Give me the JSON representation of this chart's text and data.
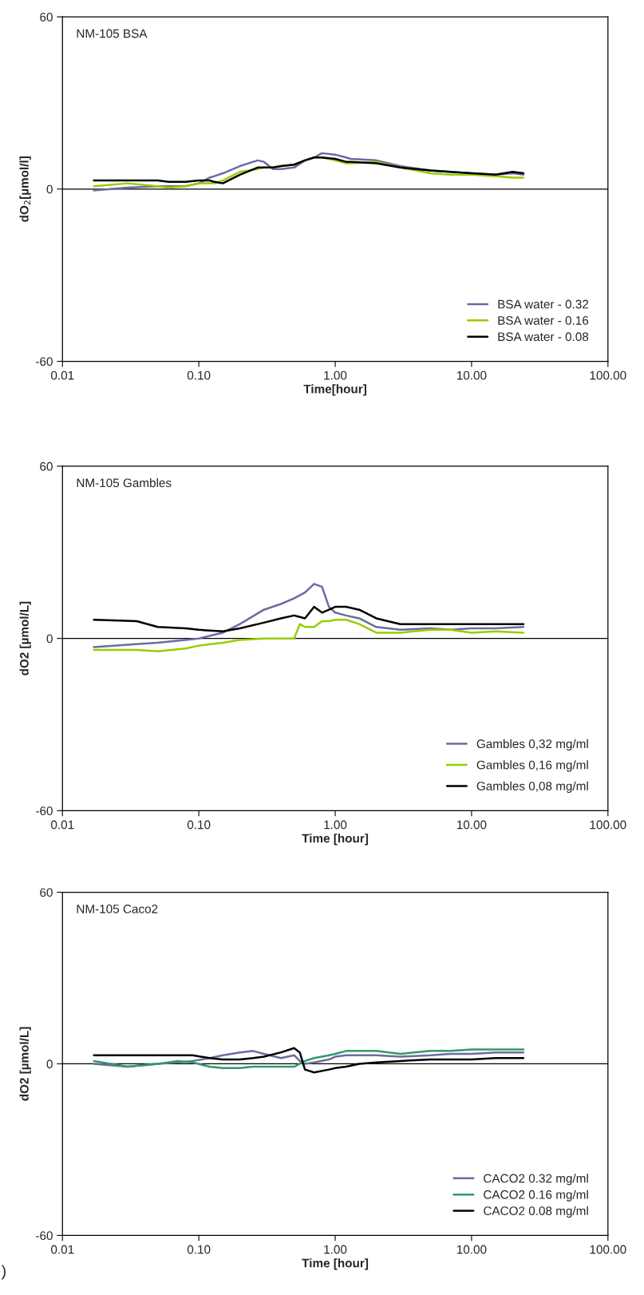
{
  "chart_data": [
    {
      "type": "line",
      "title": "NM-105 BSA",
      "xlabel": "Time[hour]",
      "ylabel": "dO$_{2}$[µmol/l]",
      "log": "x",
      "xlim": [
        0.01,
        100
      ],
      "xticks": [
        {
          "value": 0.01,
          "label": "0.01"
        },
        {
          "value": 0.1,
          "label": "0.10"
        },
        {
          "value": 1,
          "label": "1.00"
        },
        {
          "value": 10,
          "label": "10.00"
        },
        {
          "value": 100,
          "label": "100.00"
        }
      ],
      "ylim": [
        -60,
        60
      ],
      "yticks": [
        -60,
        0,
        60
      ],
      "grid": false,
      "legend": "bottom right",
      "ref_lines": [
        {
          "axis": "y",
          "value": 0
        }
      ],
      "x": [
        0.017,
        0.03,
        0.05,
        0.06,
        0.08,
        0.1,
        0.12,
        0.13,
        0.15,
        0.2,
        0.27,
        0.3,
        0.35,
        0.4,
        0.5,
        0.6,
        0.7,
        0.8,
        1.0,
        1.2,
        1.3,
        2,
        3,
        5,
        7,
        10,
        15,
        20,
        24
      ],
      "series": [
        {
          "name": "BSA water - 0.32",
          "color": "#6b6ba3",
          "values": [
            -0.5,
            0.5,
            1,
            1,
            1,
            2,
            4,
            4.5,
            5.5,
            8,
            10,
            9.5,
            7,
            7,
            7.5,
            10,
            11,
            12.5,
            12,
            11,
            10.5,
            10,
            8,
            6.5,
            6,
            5.5,
            5,
            5.5,
            5
          ]
        },
        {
          "name": "BSA water - 0.16",
          "color": "#99cc00",
          "values": [
            1,
            2,
            1,
            0.5,
            1,
            2,
            2,
            2,
            3,
            6,
            7,
            7.5,
            7.5,
            8,
            8.5,
            10,
            11,
            11,
            10,
            9,
            9,
            9.5,
            7.5,
            5.5,
            5,
            5,
            4.5,
            4,
            4
          ]
        },
        {
          "name": "BSA water - 0.08",
          "color": "#000000",
          "values": [
            3,
            3,
            3,
            2.5,
            2.5,
            3,
            3,
            2.5,
            2,
            5,
            7.5,
            7.5,
            7.5,
            8,
            8.5,
            10,
            11,
            11,
            10.5,
            9.5,
            9.5,
            9,
            7.5,
            6.5,
            6,
            5.5,
            5,
            6,
            5.5
          ]
        }
      ]
    },
    {
      "type": "line",
      "title": "NM-105 Gambles",
      "xlabel": "Time [hour]",
      "ylabel": "dO2 [µmol/L]",
      "log": "x",
      "xlim": [
        0.01,
        100
      ],
      "xticks": [
        {
          "value": 0.01,
          "label": "0.01"
        },
        {
          "value": 0.1,
          "label": "0.10"
        },
        {
          "value": 1,
          "label": "1.00"
        },
        {
          "value": 10,
          "label": "10.00"
        },
        {
          "value": 100,
          "label": "100.00"
        }
      ],
      "ylim": [
        -60,
        60
      ],
      "yticks": [
        -60,
        0,
        60
      ],
      "grid": false,
      "legend": "bottom right",
      "ref_lines": [
        {
          "axis": "y",
          "value": 0
        }
      ],
      "x": [
        0.017,
        0.035,
        0.05,
        0.08,
        0.1,
        0.15,
        0.2,
        0.3,
        0.4,
        0.5,
        0.55,
        0.6,
        0.7,
        0.8,
        0.9,
        1.0,
        1.2,
        1.5,
        2,
        3,
        5,
        7,
        10,
        15,
        24
      ],
      "series": [
        {
          "name": "Gambles 0,32 mg/ml",
          "color": "#6b6ba3",
          "values": [
            -3,
            -2,
            -1.5,
            -0.5,
            0,
            2,
            5,
            10,
            12,
            14,
            15,
            16,
            19,
            18,
            11,
            9,
            8,
            7,
            4,
            3,
            3.5,
            3,
            3.5,
            3.5,
            4
          ]
        },
        {
          "name": "Gambles 0,16 mg/ml",
          "color": "#99cc00",
          "values": [
            -4,
            -4,
            -4.5,
            -3.5,
            -2.5,
            -1.5,
            -0.5,
            0,
            0,
            0,
            5,
            4,
            4,
            6,
            6,
            6.5,
            6.5,
            5,
            2,
            2,
            3,
            3,
            2,
            2.5,
            2
          ]
        },
        {
          "name": "Gambles 0,08 mg/ml",
          "color": "#000000",
          "values": [
            6.5,
            6,
            4,
            3.5,
            3,
            2.5,
            3.5,
            5.5,
            7,
            8,
            7.5,
            7,
            11,
            9,
            10,
            11,
            11,
            10,
            7,
            5,
            5,
            5,
            5,
            5,
            5
          ]
        }
      ]
    },
    {
      "type": "line",
      "title": "NM-105 Caco2",
      "xlabel": "Time [hour]",
      "ylabel": "dO2 [µmol/L]",
      "log": "x",
      "xlim": [
        0.01,
        100
      ],
      "xticks": [
        {
          "value": 0.01,
          "label": "0.01"
        },
        {
          "value": 0.1,
          "label": "0.10"
        },
        {
          "value": 1,
          "label": "1.00"
        },
        {
          "value": 10,
          "label": "10.00"
        },
        {
          "value": 100,
          "label": "100.00"
        }
      ],
      "ylim": [
        -60,
        60
      ],
      "yticks": [
        -60,
        0,
        60
      ],
      "grid": false,
      "legend": "bottom right",
      "ref_lines": [
        {
          "axis": "y",
          "value": 0
        }
      ],
      "annotations": [
        ")"
      ],
      "x": [
        0.017,
        0.03,
        0.05,
        0.07,
        0.09,
        0.12,
        0.15,
        0.2,
        0.25,
        0.3,
        0.4,
        0.5,
        0.55,
        0.6,
        0.7,
        0.9,
        1.0,
        1.2,
        1.5,
        2,
        3,
        5,
        7,
        10,
        15,
        24
      ],
      "series": [
        {
          "name": "CACO2 0.32 mg/ml",
          "color": "#6b6ba3",
          "values": [
            0,
            -1,
            0,
            0.5,
            1,
            2,
            3,
            4,
            4.5,
            3.5,
            2,
            3,
            1,
            0,
            0.5,
            1.5,
            2.5,
            3,
            3,
            3,
            2.5,
            3,
            3.5,
            3.5,
            4,
            4
          ]
        },
        {
          "name": "CACO2 0.16 mg/ml",
          "color": "#339966",
          "values": [
            1,
            -1,
            0,
            1,
            0.5,
            -1,
            -1.5,
            -1.5,
            -1,
            -1,
            -1,
            -1,
            0,
            1,
            2,
            3,
            3.5,
            4.5,
            4.5,
            4.5,
            3.5,
            4.5,
            4.5,
            5,
            5,
            5
          ]
        },
        {
          "name": "CACO2 0.08 mg/ml",
          "color": "#000000",
          "values": [
            3,
            3,
            3,
            3,
            3,
            2,
            1.5,
            1.5,
            2,
            2.5,
            4,
            5.5,
            4,
            -2,
            -3,
            -2,
            -1.5,
            -1,
            0,
            0.5,
            1,
            1.5,
            1.5,
            1.5,
            2,
            2
          ]
        }
      ]
    }
  ]
}
